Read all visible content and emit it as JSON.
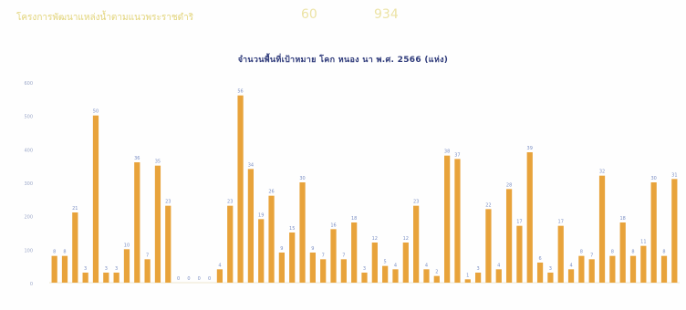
{
  "header": {
    "label": "โครงการพัฒนาแหล่งน้ำตามแนวพระราชดำริ",
    "value1": "60",
    "value2": "934"
  },
  "chart_data": {
    "type": "bar",
    "title": "จำนวนพื้นที่เป้าหมาย โคก หนอง นา พ.ศ. 2566 (แห่ง)",
    "xlabel": "",
    "ylabel": "",
    "ylim": [
      0,
      600
    ],
    "yticks": [
      0,
      100,
      200,
      300,
      400,
      500,
      600
    ],
    "grid": false,
    "bar_color": "#e8a33b",
    "label_color": "#7a8ec4",
    "values": [
      8,
      8,
      21,
      3,
      50,
      3,
      3,
      10,
      36,
      7,
      35,
      23,
      0,
      0,
      0,
      0,
      4,
      23,
      56,
      34,
      19,
      26,
      9,
      15,
      30,
      9,
      7,
      16,
      7,
      18,
      3,
      12,
      5,
      4,
      12,
      23,
      4,
      2,
      38,
      37,
      1,
      3,
      22,
      4,
      28,
      17,
      39,
      6,
      3,
      17,
      4,
      8,
      7,
      32,
      8,
      18,
      8,
      11,
      30,
      8,
      31
    ]
  }
}
